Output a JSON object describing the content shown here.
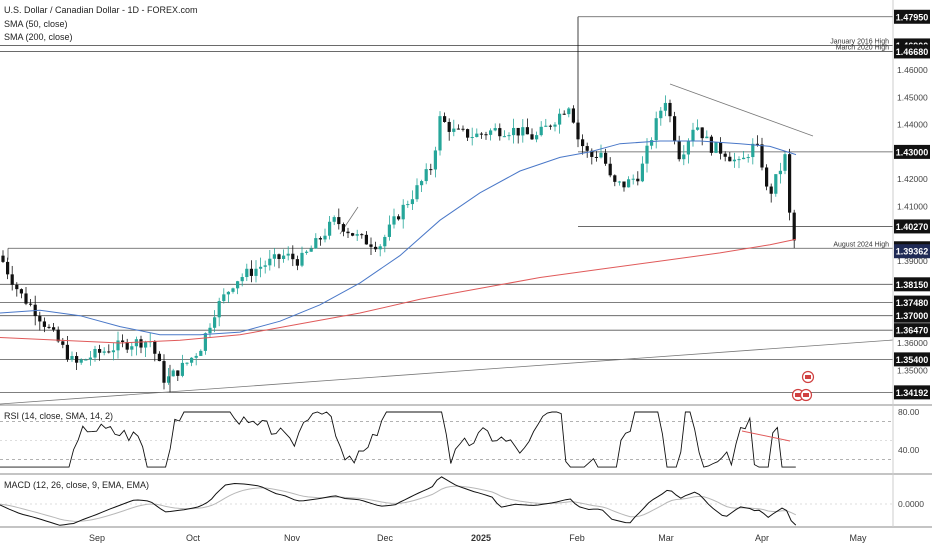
{
  "header": {
    "title": "U.S. Dollar / Canadian Dollar - 1D - FOREX.com",
    "sma50": "SMA (50, close)",
    "sma200": "SMA (200, close)"
  },
  "colors": {
    "up": "#26a69a",
    "down": "#111111",
    "sma50": "#4a78c8",
    "sma200": "#e05a5a",
    "level": "#555555",
    "rsi": "#111111",
    "rsi_divergence": "#e05a5a",
    "macd": "#111111",
    "signal": "#b8b8b8"
  },
  "panels": {
    "rsi_label": "RSI (14, close, SMA, 14, 2)",
    "macd_label": "MACD (12, 26, close, 9, EMA, EMA)",
    "rsi_ticks": [
      "80.00",
      "40.00"
    ],
    "macd_tick": "0.0000"
  },
  "chart_data": {
    "type": "candlestick",
    "title": "U.S. Dollar / Canadian Dollar - 1D - FOREX.com",
    "x_ticks": [
      "Sep",
      "Oct",
      "Nov",
      "Dec",
      "2025",
      "Feb",
      "Mar",
      "Apr",
      "May"
    ],
    "y_ticks": [
      "1.46000",
      "1.45000",
      "1.44000",
      "1.42000",
      "1.41000",
      "1.39000",
      "1.36000",
      "1.35000"
    ],
    "ylim": [
      1.341,
      1.4825
    ],
    "levels": [
      {
        "value": "1.47950",
        "label": ""
      },
      {
        "value": "1.46900",
        "label": "January 2016 High"
      },
      {
        "value": "1.46680",
        "label": "March 2020 High"
      },
      {
        "value": "1.43000",
        "label": ""
      },
      {
        "value": "1.40270",
        "label": ""
      },
      {
        "value": "1.39470",
        "label": "August 2024 High"
      },
      {
        "value": "1.38150",
        "label": ""
      },
      {
        "value": "1.37480",
        "label": ""
      },
      {
        "value": "1.37000",
        "label": ""
      },
      {
        "value": "1.36470",
        "label": ""
      },
      {
        "value": "1.35400",
        "label": ""
      },
      {
        "value": "1.34192",
        "label": ""
      }
    ],
    "current_price": "1.39362",
    "series": [
      {
        "name": "SMA (50, close)",
        "values_description": "moving average"
      },
      {
        "name": "SMA (200, close)",
        "values_description": "moving average"
      }
    ],
    "grid": false
  }
}
